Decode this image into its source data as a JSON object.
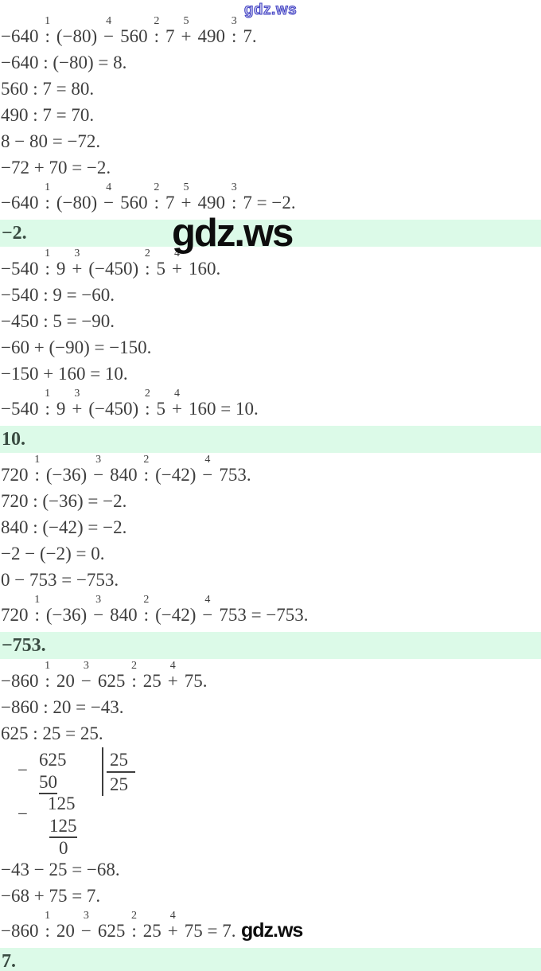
{
  "colors": {
    "text": "#3e3e3e",
    "highlight": "#dcfae8",
    "answer_text": "#394b41",
    "wm_top": "#3d3dc2",
    "wm_overlay": "#0d0d0d"
  },
  "watermarks": {
    "top": "gdz.ws"
  },
  "sections": [
    {
      "problem": [
        {
          "t": "−640"
        },
        {
          "op": ":",
          "ord": "1"
        },
        {
          "t": "(−80)"
        },
        {
          "op": "−",
          "ord": "4"
        },
        {
          "t": "560"
        },
        {
          "op": ":",
          "ord": "2"
        },
        {
          "t": "7"
        },
        {
          "op": "+",
          "ord": "5"
        },
        {
          "t": "490"
        },
        {
          "op": ":",
          "ord": "3"
        },
        {
          "t": "7."
        }
      ],
      "steps": [
        "−640 : (−80) = 8.",
        "560 : 7 = 80.",
        "490 : 7 = 70.",
        "8 − 80 = −72.",
        "−72 + 70 = −2."
      ],
      "conclusion": [
        {
          "t": "−640"
        },
        {
          "op": ":",
          "ord": "1"
        },
        {
          "t": "(−80)"
        },
        {
          "op": "−",
          "ord": "4"
        },
        {
          "t": "560"
        },
        {
          "op": ":",
          "ord": "2"
        },
        {
          "t": "7"
        },
        {
          "op": "+",
          "ord": "5"
        },
        {
          "t": "490"
        },
        {
          "op": ":",
          "ord": "3"
        },
        {
          "t": "7 = −2."
        }
      ],
      "answer": "−2.",
      "watermarks": [
        {
          "text": "gdz.ws",
          "size": "big",
          "anchor": "answer"
        }
      ]
    },
    {
      "problem": [
        {
          "t": "−540"
        },
        {
          "op": ":",
          "ord": "1"
        },
        {
          "t": "9"
        },
        {
          "op": "+",
          "ord": "3"
        },
        {
          "t": "(−450)"
        },
        {
          "op": ":",
          "ord": "2"
        },
        {
          "t": "5"
        },
        {
          "op": "+",
          "ord": "4"
        },
        {
          "t": "160."
        }
      ],
      "steps": [
        "−540 : 9 = −60.",
        "−450 : 5 = −90.",
        "−60 + (−90) = −150.",
        "−150 + 160 = 10."
      ],
      "conclusion": [
        {
          "t": "−540"
        },
        {
          "op": ":",
          "ord": "1"
        },
        {
          "t": "9"
        },
        {
          "op": "+",
          "ord": "3"
        },
        {
          "t": "(−450)"
        },
        {
          "op": ":",
          "ord": "2"
        },
        {
          "t": "5"
        },
        {
          "op": "+",
          "ord": "4"
        },
        {
          "t": "160 = 10."
        }
      ],
      "answer": "10.",
      "watermarks": []
    },
    {
      "problem": [
        {
          "t": "720"
        },
        {
          "op": ":",
          "ord": "1"
        },
        {
          "t": "(−36)"
        },
        {
          "op": "−",
          "ord": "3"
        },
        {
          "t": "840"
        },
        {
          "op": ":",
          "ord": "2"
        },
        {
          "t": "(−42)"
        },
        {
          "op": "−",
          "ord": "4"
        },
        {
          "t": "753."
        }
      ],
      "steps": [
        "720 : (−36) = −2.",
        "840 : (−42) = −2.",
        "−2 − (−2) = 0.",
        "0 − 753 = −753."
      ],
      "conclusion": [
        {
          "t": "720"
        },
        {
          "op": ":",
          "ord": "1"
        },
        {
          "t": "(−36)"
        },
        {
          "op": "−",
          "ord": "3"
        },
        {
          "t": "840"
        },
        {
          "op": ":",
          "ord": "2"
        },
        {
          "t": "(−42)"
        },
        {
          "op": "−",
          "ord": "4"
        },
        {
          "t": "753 = −753."
        }
      ],
      "answer": "−753.",
      "watermarks": [
        {
          "text": "gdz.ws",
          "size": "big",
          "anchor": "step-0"
        }
      ]
    },
    {
      "problem": [
        {
          "t": "−860"
        },
        {
          "op": ":",
          "ord": "1"
        },
        {
          "t": "20"
        },
        {
          "op": "−",
          "ord": "3"
        },
        {
          "t": "625"
        },
        {
          "op": ":",
          "ord": "2"
        },
        {
          "t": "25"
        },
        {
          "op": "+",
          "ord": "4"
        },
        {
          "t": "75."
        }
      ],
      "steps": [
        "−860 : 20 = −43.",
        "625 : 25 = 25.",
        "−43 − 25 = −68.",
        "−68 + 75 = 7."
      ],
      "division": {
        "after_step": 2,
        "minus_sign_1": "−",
        "dividend": "625",
        "subtrahend_1": "50",
        "divisor": "25",
        "quotient": "25",
        "remainder_1": "125",
        "minus_sign_2": "−",
        "subtrahend_2": "125",
        "remainder_2": "0"
      },
      "conclusion": [
        {
          "t": "−860"
        },
        {
          "op": ":",
          "ord": "1"
        },
        {
          "t": "20"
        },
        {
          "op": "−",
          "ord": "3"
        },
        {
          "t": "625"
        },
        {
          "op": ":",
          "ord": "2"
        },
        {
          "t": "25"
        },
        {
          "op": "+",
          "ord": "4"
        },
        {
          "t": "75 = 7."
        }
      ],
      "answer": "7.",
      "watermarks": [
        {
          "text": "gdz.ws",
          "size": "big",
          "anchor": "step-1"
        },
        {
          "text": "gdz.ws",
          "size": "small",
          "anchor": "conclusion"
        }
      ]
    }
  ]
}
